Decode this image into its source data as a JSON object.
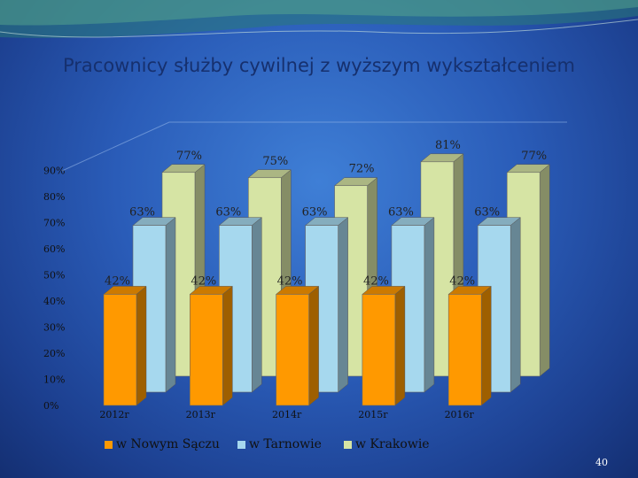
{
  "slide": {
    "title": "Pracownicy służby cywilnej z wyższym wykształceniem",
    "number": "40"
  },
  "chart_data": {
    "type": "bar",
    "subtype": "3d-clustered-depth",
    "categories": [
      "2012r",
      "2013r",
      "2014r",
      "2015r",
      "2016r"
    ],
    "series": [
      {
        "name": "w Nowym Sączu",
        "values": [
          42,
          42,
          42,
          42,
          42
        ],
        "labels": [
          "42%",
          "42%",
          "42%",
          "42%",
          "42%"
        ],
        "color": "#ff9900"
      },
      {
        "name": "w Tarnowie",
        "values": [
          63,
          63,
          63,
          63,
          63
        ],
        "labels": [
          "63%",
          "63%",
          "63%",
          "63%",
          "63%"
        ],
        "color": "#a6d8ee"
      },
      {
        "name": "w Krakowie",
        "values": [
          77,
          75,
          72,
          81,
          77
        ],
        "labels": [
          "77%",
          "75%",
          "72%",
          "81%",
          "77%"
        ],
        "color": "#d6e4a4"
      }
    ],
    "y_ticks": [
      "0%",
      "10%",
      "20%",
      "30%",
      "40%",
      "50%",
      "60%",
      "70%",
      "80%",
      "90%"
    ],
    "ylim": [
      0,
      90
    ],
    "legend_position": "bottom",
    "grid": false
  },
  "legend": {
    "items": [
      "w Nowym Sączu",
      "w Tarnowie",
      "w Krakowie"
    ]
  }
}
